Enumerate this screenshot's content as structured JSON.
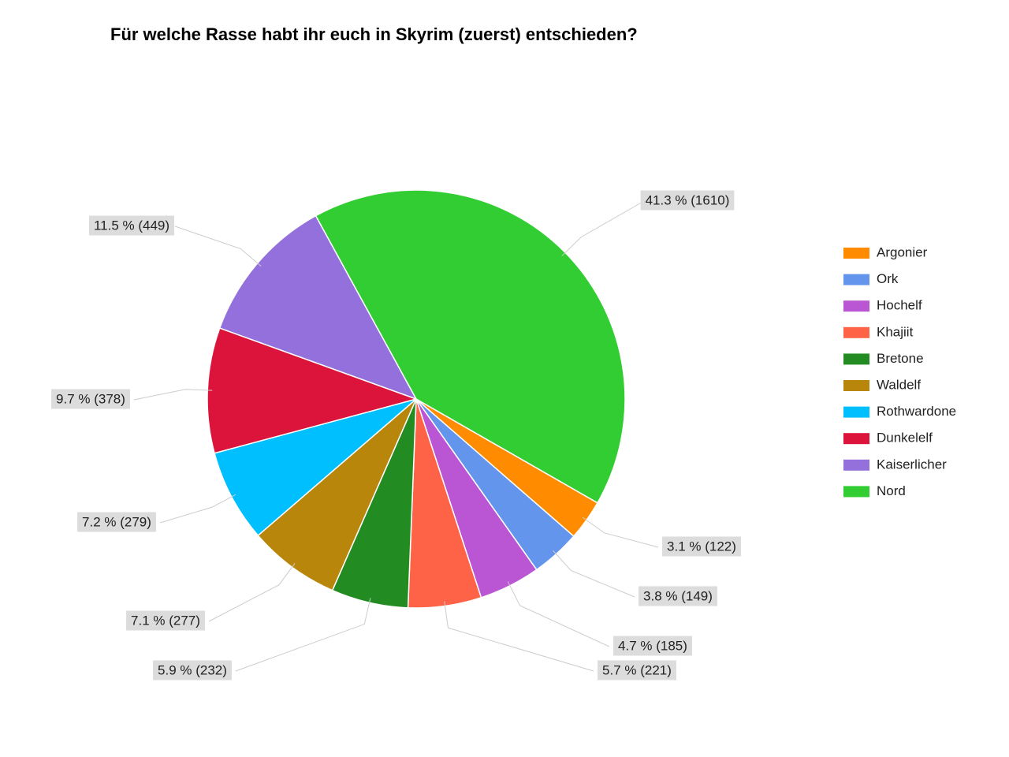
{
  "chart_data": {
    "type": "pie",
    "title": "Für welche Rasse habt ihr euch in Skyrim (zuerst) entschieden?",
    "categories": [
      "Argonier",
      "Ork",
      "Hochelf",
      "Khajiit",
      "Bretone",
      "Waldelf",
      "Rothwardone",
      "Dunkelelf",
      "Kaiserlicher",
      "Nord"
    ],
    "values": [
      122,
      149,
      185,
      221,
      232,
      277,
      279,
      378,
      449,
      1610
    ],
    "value_labels": [
      "3.1 % (122)",
      "3.8 % (149)",
      "4.7 % (185)",
      "5.7 % (221)",
      "5.9 % (232)",
      "7.1 % (277)",
      "7.2 % (279)",
      "9.7 % (378)",
      "11.5 % (449)",
      "41.3 % (1610)"
    ],
    "colors": [
      "#ff8c00",
      "#6495ed",
      "#ba55d3",
      "#ff6347",
      "#228b22",
      "#b8860b",
      "#00bfff",
      "#dc143c",
      "#9370db",
      "#32cd32"
    ],
    "legend": "right"
  }
}
